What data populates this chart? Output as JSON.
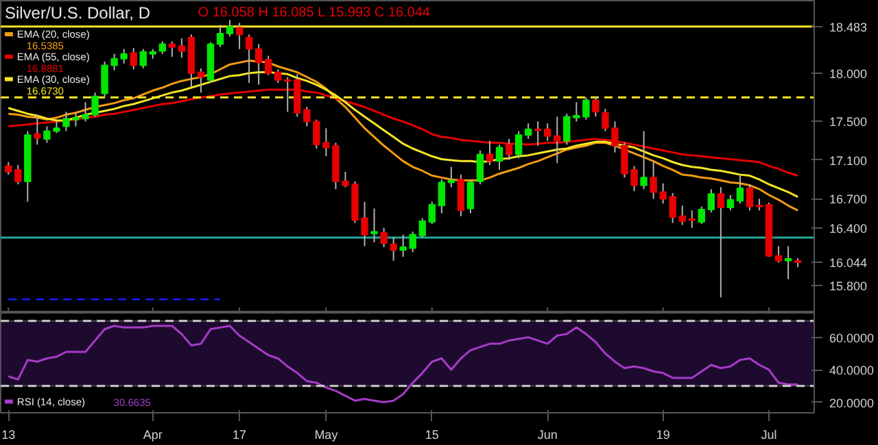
{
  "chart_data": [
    {
      "type": "candlestick",
      "title": "Silver/U.S. Dollar, D",
      "categories": [
        "13",
        null,
        null,
        null,
        null,
        null,
        null,
        null,
        null,
        null,
        null,
        null,
        null,
        null,
        null,
        "Apr",
        null,
        null,
        null,
        null,
        null,
        null,
        null,
        null,
        "17",
        null,
        null,
        null,
        null,
        null,
        null,
        null,
        null,
        "May",
        null,
        null,
        null,
        null,
        null,
        null,
        null,
        null,
        null,
        null,
        "15",
        null,
        null,
        null,
        null,
        null,
        null,
        null,
        null,
        null,
        null,
        null,
        "Jun",
        null,
        null,
        null,
        null,
        null,
        null,
        null,
        null,
        null,
        null,
        null,
        "19",
        null,
        null,
        null,
        null,
        null,
        null,
        null,
        null,
        null,
        null,
        "Jul",
        null,
        null,
        null
      ],
      "ohlc": [
        [
          17.04,
          17.08,
          16.95,
          16.98
        ],
        [
          17.0,
          17.05,
          16.85,
          16.88
        ],
        [
          16.88,
          17.4,
          16.67,
          17.36
        ],
        [
          17.37,
          17.57,
          17.26,
          17.33
        ],
        [
          17.32,
          17.45,
          17.28,
          17.4
        ],
        [
          17.4,
          17.5,
          17.38,
          17.43
        ],
        [
          17.45,
          17.6,
          17.4,
          17.53
        ],
        [
          17.52,
          17.6,
          17.45,
          17.54
        ],
        [
          17.53,
          17.7,
          17.5,
          17.57
        ],
        [
          17.57,
          17.8,
          17.55,
          17.76
        ],
        [
          17.79,
          18.12,
          17.75,
          18.08
        ],
        [
          18.08,
          18.2,
          18.03,
          18.15
        ],
        [
          18.15,
          18.25,
          18.1,
          18.2
        ],
        [
          18.21,
          18.26,
          18.04,
          18.08
        ],
        [
          18.08,
          18.25,
          18.05,
          18.22
        ],
        [
          18.2,
          18.25,
          18.15,
          18.22
        ],
        [
          18.23,
          18.33,
          18.2,
          18.3
        ],
        [
          18.3,
          18.33,
          18.17,
          18.27
        ],
        [
          18.28,
          18.36,
          18.16,
          18.23
        ],
        [
          18.37,
          18.4,
          17.86,
          18.0
        ],
        [
          18.01,
          18.05,
          17.8,
          17.96
        ],
        [
          17.93,
          18.32,
          17.9,
          18.3
        ],
        [
          18.3,
          18.5,
          18.27,
          18.41
        ],
        [
          18.41,
          18.55,
          18.38,
          18.48
        ],
        [
          18.47,
          18.52,
          18.25,
          18.4
        ],
        [
          18.37,
          18.4,
          17.9,
          18.25
        ],
        [
          18.25,
          18.3,
          17.88,
          18.11
        ],
        [
          18.14,
          18.18,
          17.98,
          18.0
        ],
        [
          18.01,
          18.04,
          17.9,
          17.93
        ],
        [
          17.93,
          17.96,
          17.6,
          17.92
        ],
        [
          17.93,
          17.99,
          17.55,
          17.59
        ],
        [
          17.62,
          17.65,
          17.45,
          17.5
        ],
        [
          17.5,
          17.52,
          17.22,
          17.26
        ],
        [
          17.28,
          17.43,
          17.14,
          17.23
        ],
        [
          17.25,
          17.28,
          16.8,
          16.88
        ],
        [
          16.88,
          16.98,
          16.82,
          16.84
        ],
        [
          16.85,
          16.88,
          16.45,
          16.48
        ],
        [
          16.5,
          16.67,
          16.21,
          16.33
        ],
        [
          16.34,
          16.6,
          16.25,
          16.36
        ],
        [
          16.35,
          16.4,
          16.2,
          16.24
        ],
        [
          16.23,
          16.3,
          16.06,
          16.17
        ],
        [
          16.17,
          16.33,
          16.1,
          16.2
        ],
        [
          16.19,
          16.36,
          16.15,
          16.33
        ],
        [
          16.32,
          16.5,
          16.3,
          16.47
        ],
        [
          16.46,
          16.67,
          16.44,
          16.64
        ],
        [
          16.63,
          16.9,
          16.55,
          16.87
        ],
        [
          16.87,
          17.03,
          16.82,
          16.89
        ],
        [
          16.9,
          16.95,
          16.52,
          16.58
        ],
        [
          16.6,
          16.9,
          16.55,
          16.87
        ],
        [
          16.88,
          17.2,
          16.85,
          17.16
        ],
        [
          17.16,
          17.3,
          17.05,
          17.09
        ],
        [
          17.09,
          17.26,
          17.0,
          17.23
        ],
        [
          17.26,
          17.32,
          17.1,
          17.16
        ],
        [
          17.16,
          17.4,
          17.12,
          17.36
        ],
        [
          17.36,
          17.48,
          17.32,
          17.42
        ],
        [
          17.42,
          17.5,
          17.25,
          17.41
        ],
        [
          17.42,
          17.48,
          17.3,
          17.35
        ],
        [
          17.35,
          17.55,
          17.07,
          17.3
        ],
        [
          17.3,
          17.58,
          17.26,
          17.55
        ],
        [
          17.54,
          17.7,
          17.5,
          17.56
        ],
        [
          17.55,
          17.75,
          17.52,
          17.72
        ],
        [
          17.72,
          17.75,
          17.55,
          17.6
        ],
        [
          17.59,
          17.63,
          17.4,
          17.43
        ],
        [
          17.43,
          17.5,
          17.18,
          17.25
        ],
        [
          17.25,
          17.28,
          16.92,
          16.96
        ],
        [
          17.0,
          17.04,
          16.78,
          16.84
        ],
        [
          16.84,
          17.4,
          16.8,
          16.92
        ],
        [
          16.92,
          17.08,
          16.7,
          16.77
        ],
        [
          16.77,
          16.86,
          16.65,
          16.7
        ],
        [
          16.72,
          16.76,
          16.45,
          16.51
        ],
        [
          16.52,
          16.63,
          16.43,
          16.47
        ],
        [
          16.49,
          16.58,
          16.4,
          16.48
        ],
        [
          16.46,
          16.62,
          16.44,
          16.59
        ],
        [
          16.59,
          16.8,
          16.56,
          16.75
        ],
        [
          16.75,
          16.82,
          15.68,
          16.61
        ],
        [
          16.61,
          16.74,
          16.58,
          16.69
        ],
        [
          16.68,
          16.94,
          16.65,
          16.81
        ],
        [
          16.81,
          16.85,
          16.58,
          16.62
        ],
        [
          16.63,
          16.7,
          16.58,
          16.62
        ],
        [
          16.64,
          16.66,
          16.1,
          16.11
        ],
        [
          16.11,
          16.21,
          16.04,
          16.06
        ],
        [
          16.06,
          16.21,
          15.87,
          16.08
        ],
        [
          16.058,
          16.085,
          15.993,
          16.044
        ]
      ],
      "colors": [
        "#e60000",
        "#e60000",
        "#00e600",
        "#e60000",
        "#00e600",
        "#00e600",
        "#00e600",
        "#00e600",
        "#00e600",
        "#00e600",
        "#00e600",
        "#00e600",
        "#00e600",
        "#e60000",
        "#00e600",
        "#00e600",
        "#00e600",
        "#e60000",
        "#e60000",
        "#e60000",
        "#e60000",
        "#00e600",
        "#00e600",
        "#00e600",
        "#e60000",
        "#e60000",
        "#e60000",
        "#e60000",
        "#e60000",
        "#e60000",
        "#e60000",
        "#e60000",
        "#e60000",
        "#e60000",
        "#e60000",
        "#e60000",
        "#e60000",
        "#e60000",
        "#00e600",
        "#e60000",
        "#e60000",
        "#00e600",
        "#00e600",
        "#00e600",
        "#00e600",
        "#00e600",
        "#00e600",
        "#e60000",
        "#00e600",
        "#00e600",
        "#e60000",
        "#00e600",
        "#e60000",
        "#00e600",
        "#00e600",
        "#e60000",
        "#e60000",
        "#e60000",
        "#00e600",
        "#00e600",
        "#00e600",
        "#e60000",
        "#e60000",
        "#e60000",
        "#e60000",
        "#e60000",
        "#00e600",
        "#e60000",
        "#e60000",
        "#e60000",
        "#e60000",
        "#e60000",
        "#00e600",
        "#00e600",
        "#e60000",
        "#00e600",
        "#00e600",
        "#e60000",
        "#e60000",
        "#e60000",
        "#e60000",
        "#00e600",
        "#e60000"
      ],
      "series": [
        {
          "type": "line",
          "name": "EMA (20, close)",
          "color": "#f39c12",
          "values": [
            17.58,
            17.57,
            17.55,
            17.54,
            17.52,
            17.54,
            17.57,
            17.59,
            17.62,
            17.65,
            17.67,
            17.69,
            17.72,
            17.74,
            17.78,
            17.82,
            17.85,
            17.89,
            17.92,
            17.94,
            17.96,
            17.99,
            18.04,
            18.09,
            18.11,
            18.13,
            18.12,
            18.11,
            18.07,
            18.04,
            18.01,
            17.96,
            17.91,
            17.84,
            17.74,
            17.65,
            17.54,
            17.43,
            17.34,
            17.25,
            17.17,
            17.09,
            17.03,
            16.99,
            16.94,
            16.92,
            16.9,
            16.89,
            16.89,
            16.89,
            16.92,
            16.96,
            16.99,
            17.02,
            17.06,
            17.09,
            17.13,
            17.17,
            17.21,
            17.23,
            17.25,
            17.28,
            17.28,
            17.25,
            17.21,
            17.17,
            17.13,
            17.09,
            17.04,
            17.0,
            16.95,
            16.94,
            16.92,
            16.91,
            16.89,
            16.87,
            16.86,
            16.84,
            16.8,
            16.74,
            16.69,
            16.63,
            16.58
          ]
        },
        {
          "type": "line",
          "name": "EMA (55, close)",
          "color": "#e60000",
          "values": [
            17.45,
            17.46,
            17.47,
            17.48,
            17.49,
            17.5,
            17.51,
            17.52,
            17.54,
            17.55,
            17.57,
            17.58,
            17.6,
            17.62,
            17.64,
            17.66,
            17.68,
            17.69,
            17.71,
            17.73,
            17.75,
            17.76,
            17.78,
            17.79,
            17.8,
            17.81,
            17.82,
            17.83,
            17.83,
            17.83,
            17.83,
            17.81,
            17.8,
            17.77,
            17.74,
            17.71,
            17.68,
            17.65,
            17.61,
            17.57,
            17.53,
            17.5,
            17.46,
            17.42,
            17.37,
            17.34,
            17.33,
            17.31,
            17.3,
            17.29,
            17.28,
            17.28,
            17.27,
            17.27,
            17.26,
            17.27,
            17.28,
            17.28,
            17.29,
            17.3,
            17.31,
            17.32,
            17.31,
            17.3,
            17.28,
            17.26,
            17.24,
            17.22,
            17.2,
            17.18,
            17.16,
            17.15,
            17.14,
            17.13,
            17.12,
            17.11,
            17.1,
            17.09,
            17.08,
            17.04,
            17.01,
            16.97,
            16.94
          ]
        },
        {
          "type": "line",
          "name": "EMA (30, close)",
          "color": "#f5e625",
          "values": [
            17.64,
            17.61,
            17.58,
            17.56,
            17.53,
            17.51,
            17.51,
            17.54,
            17.57,
            17.59,
            17.61,
            17.63,
            17.66,
            17.68,
            17.71,
            17.74,
            17.77,
            17.8,
            17.82,
            17.85,
            17.88,
            17.91,
            17.94,
            17.97,
            17.98,
            18.0,
            18.01,
            18.01,
            18.0,
            17.99,
            17.95,
            17.92,
            17.88,
            17.83,
            17.77,
            17.7,
            17.62,
            17.55,
            17.48,
            17.41,
            17.34,
            17.27,
            17.22,
            17.18,
            17.14,
            17.11,
            17.1,
            17.09,
            17.09,
            17.08,
            17.09,
            17.11,
            17.12,
            17.14,
            17.15,
            17.17,
            17.19,
            17.21,
            17.22,
            17.25,
            17.27,
            17.29,
            17.29,
            17.27,
            17.25,
            17.23,
            17.19,
            17.15,
            17.12,
            17.08,
            17.05,
            17.03,
            17.02,
            17.0,
            16.99,
            16.97,
            16.95,
            16.94,
            16.9,
            16.85,
            16.81,
            16.77,
            16.72
          ]
        },
        {
          "type": "line",
          "color": "#1a1aff",
          "line_style": "dashed",
          "values": [
            15.66,
            15.66,
            15.66,
            15.66,
            15.66,
            15.66,
            15.66,
            15.66,
            15.66,
            15.66,
            15.66,
            15.66,
            15.66,
            15.66,
            15.66,
            15.66,
            15.66,
            15.66,
            15.66,
            15.66,
            15.66,
            15.66,
            15.66,
            null,
            null,
            null,
            null,
            null,
            null,
            null,
            null,
            null,
            null,
            null,
            null,
            null,
            null,
            null,
            null,
            null,
            null,
            null,
            null,
            null,
            null,
            null,
            null,
            null,
            null,
            null,
            null,
            null,
            null,
            null,
            null,
            null,
            null,
            null,
            null,
            null,
            null,
            null,
            null,
            null,
            null,
            null,
            null,
            null,
            null,
            null,
            null,
            null,
            null,
            null,
            null,
            null,
            null,
            null,
            null,
            null,
            null,
            null,
            null
          ]
        }
      ],
      "ylim": [
        15.52,
        18.75
      ],
      "yticks": [
        {
          "value": 15.8,
          "label": "15.800"
        },
        {
          "value": 16.044,
          "label": "16.044"
        },
        {
          "value": 16.4,
          "label": "16.400"
        },
        {
          "value": 16.7,
          "label": "16.700"
        },
        {
          "value": 17.1,
          "label": "17.100"
        },
        {
          "value": 17.5,
          "label": "17.500"
        },
        {
          "value": 18,
          "label": "18.000"
        }
      ],
      "ref_lines": [
        {
          "axis": "y",
          "value": 18.483,
          "label": "18.483",
          "color": "#f5e625",
          "line_style": "solid"
        },
        {
          "axis": "y",
          "value": 17.75,
          "color": "#f5e625",
          "line_style": "dashed"
        },
        {
          "axis": "y",
          "value": 16.3,
          "color": "#26a69a",
          "line_style": "solid"
        }
      ],
      "annotations": [
        "O 16.058 H 16.085 L 15.993 C 16.044",
        "16.5385",
        "16.8881",
        "16.6730"
      ],
      "legend": "top left",
      "tick_labels": "y",
      "grid": false
    },
    {
      "type": "line",
      "categories": [
        "13",
        null,
        null,
        null,
        null,
        null,
        null,
        null,
        null,
        null,
        null,
        null,
        null,
        null,
        null,
        "Apr",
        null,
        null,
        null,
        null,
        null,
        null,
        null,
        null,
        "17",
        null,
        null,
        null,
        null,
        null,
        null,
        null,
        null,
        "May",
        null,
        null,
        null,
        null,
        null,
        null,
        null,
        null,
        null,
        null,
        "15",
        null,
        null,
        null,
        null,
        null,
        null,
        null,
        null,
        null,
        null,
        null,
        "Jun",
        null,
        null,
        null,
        null,
        null,
        null,
        null,
        null,
        null,
        null,
        null,
        "19",
        null,
        null,
        null,
        null,
        null,
        null,
        null,
        null,
        null,
        null,
        "Jul",
        null,
        null,
        null
      ],
      "series": [
        {
          "name": "RSI (14, close)",
          "color": "#a63cc8",
          "values": [
            36,
            34,
            46,
            45,
            47,
            48,
            51,
            51,
            51,
            58,
            65,
            67,
            66,
            66,
            66,
            67,
            67,
            67,
            62,
            55,
            56,
            65,
            66,
            67,
            61,
            57,
            53,
            49,
            47,
            42,
            38,
            33,
            32,
            29,
            27,
            24,
            21,
            22,
            21,
            20,
            21,
            25,
            32,
            38,
            45,
            47,
            40,
            47,
            52,
            54,
            56,
            56,
            58,
            59,
            60,
            58,
            56,
            61,
            62,
            66,
            62,
            57,
            50,
            45,
            41,
            42,
            41,
            39,
            38,
            35,
            35,
            35,
            39,
            43,
            41,
            42,
            46,
            47,
            43,
            40,
            32,
            31,
            31
          ]
        }
      ],
      "ylim": [
        13.5,
        75
      ],
      "yticks": [
        {
          "value": 20,
          "label": "20.0000"
        },
        {
          "value": 40,
          "label": "40.0000"
        },
        {
          "value": 60,
          "label": "60.0000"
        }
      ],
      "ref_lines": [
        {
          "axis": "y",
          "value": 70,
          "color": "#cccccc",
          "line_style": "dashed"
        },
        {
          "axis": "y",
          "value": 30,
          "color": "#cccccc",
          "line_style": "dashed"
        }
      ],
      "bands": [
        {
          "axis": "y",
          "from": 30,
          "to": 70,
          "color": "#1e0a2e"
        }
      ],
      "annotations": [
        "30.6635"
      ],
      "legend": "bottom left",
      "grid": false
    }
  ]
}
